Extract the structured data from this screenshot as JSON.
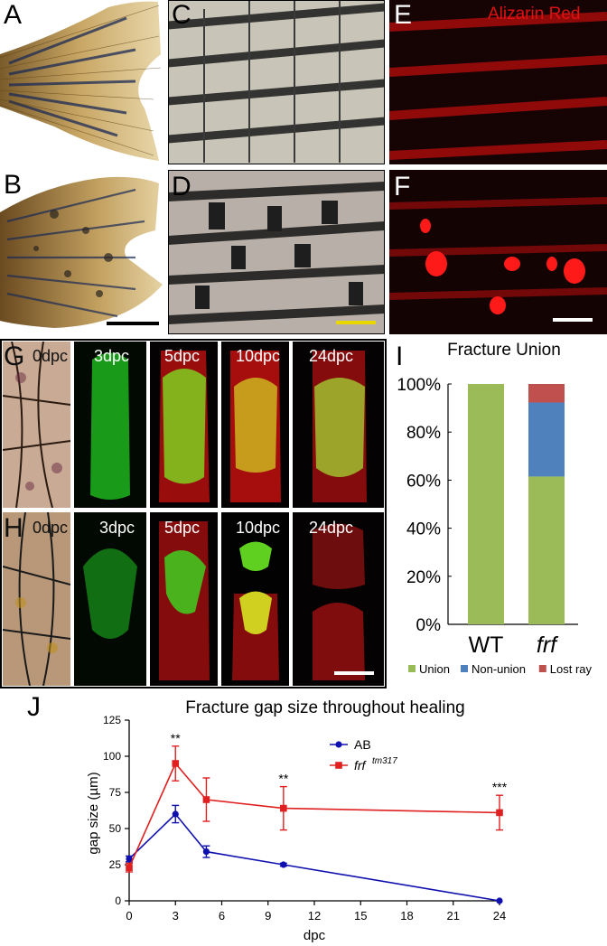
{
  "panel_letters": {
    "A": "A",
    "B": "B",
    "C": "C",
    "D": "D",
    "E": "E",
    "F": "F",
    "G": "G",
    "H": "H",
    "I": "I",
    "J": "J"
  },
  "panel_E_label": "Alizarin Red",
  "timepoints": [
    "0dpc",
    "3dpc",
    "5dpc",
    "10dpc",
    "24dpc"
  ],
  "colors": {
    "union": "#9bbb59",
    "nonunion": "#4f81bd",
    "lostray": "#c0504d",
    "ab_series": "#1010b0",
    "frf_series": "#e02020",
    "scalebar_yellow": "#e8d800",
    "alizarin": "#e01010"
  },
  "chart_data": [
    {
      "type": "bar",
      "stacked": true,
      "title": "Fracture Union",
      "categories": [
        "WT",
        "frf"
      ],
      "series": [
        {
          "name": "Union",
          "values": [
            100,
            61.5
          ]
        },
        {
          "name": "Non-union",
          "values": [
            0,
            30.8
          ]
        },
        {
          "name": "Lost ray",
          "values": [
            0,
            7.7
          ]
        }
      ],
      "ylim": [
        0,
        100
      ],
      "yticks": [
        "0%",
        "20%",
        "40%",
        "60%",
        "80%",
        "100%"
      ],
      "legend_position": "bottom"
    },
    {
      "type": "line",
      "title": "Fracture gap size throughout healing",
      "xlabel": "dpc",
      "ylabel": "gap size (µm)",
      "xlim": [
        0,
        24
      ],
      "ylim": [
        0,
        125
      ],
      "xticks": [
        "0",
        "3",
        "6",
        "9",
        "12",
        "15",
        "18",
        "21",
        "24"
      ],
      "yticks": [
        "0",
        "25",
        "50",
        "75",
        "100",
        "125"
      ],
      "legend_position": "top-right",
      "series": [
        {
          "name": "AB",
          "x": [
            0,
            3,
            5,
            10,
            24
          ],
          "y": [
            29,
            60,
            34,
            25,
            0
          ],
          "err": [
            2,
            6,
            4,
            1,
            0
          ]
        },
        {
          "name": "frf",
          "name_superscript": "tm317",
          "x": [
            0,
            3,
            5,
            10,
            24
          ],
          "y": [
            23,
            95,
            70,
            64,
            61
          ],
          "err": [
            3,
            12,
            15,
            15,
            12
          ]
        }
      ],
      "significance": [
        {
          "x": 3,
          "label": "**"
        },
        {
          "x": 10,
          "label": "**"
        },
        {
          "x": 24,
          "label": "***"
        }
      ]
    }
  ]
}
